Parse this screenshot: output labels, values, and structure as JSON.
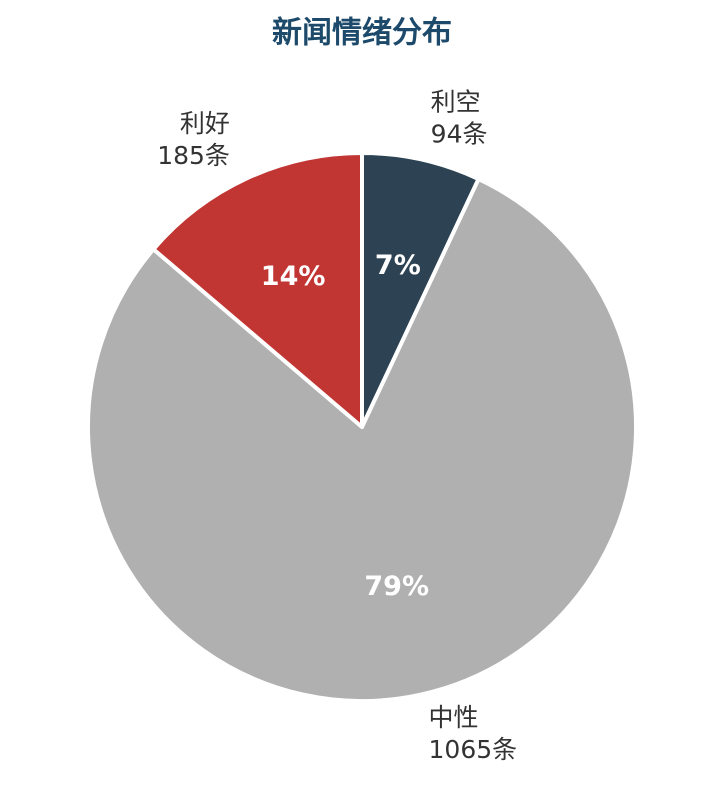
{
  "chart_data": {
    "type": "pie",
    "title": "新闻情绪分布",
    "categories": [
      "利空",
      "中性",
      "利好"
    ],
    "values": [
      94,
      1065,
      185
    ],
    "value_labels": [
      "94条",
      "1065条",
      "185条"
    ],
    "percents": [
      7,
      79,
      14
    ],
    "percent_labels": [
      "7%",
      "79%",
      "14%"
    ],
    "colors": [
      "#2d4353",
      "#b0b0b0",
      "#c13532"
    ]
  }
}
